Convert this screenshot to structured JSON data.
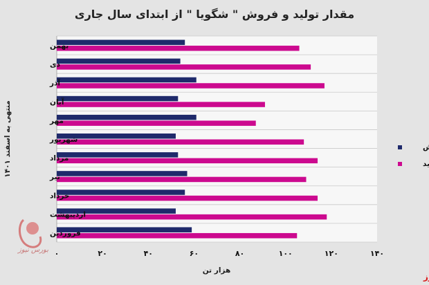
{
  "chart_data": {
    "type": "bar",
    "orientation": "horizontal",
    "title": "مقدار تولید و فروش \" شگویا \" از ابتدای سال جاری",
    "xlabel": "هزار تن",
    "ylabel": "منتهی به اسفند ۱۴۰۱",
    "categories": [
      "بهمن",
      "دی",
      "آذر",
      "آبان",
      "مهر",
      "شهریور",
      "مرداد",
      "تیر",
      "خرداد",
      "اردیبهشت",
      "فروردین"
    ],
    "series": [
      {
        "name": "فروش",
        "color": "#1f2a6b",
        "values": [
          56,
          54,
          61,
          53,
          61,
          52,
          53,
          57,
          56,
          52,
          59
        ]
      },
      {
        "name": "تولید",
        "color": "#cc0a8f",
        "values": [
          106,
          111,
          117,
          91,
          87,
          108,
          114,
          109,
          114,
          118,
          105
        ]
      }
    ],
    "xlim": [
      0,
      140
    ],
    "xticks": [
      0,
      20,
      40,
      60,
      80,
      100,
      120,
      140
    ],
    "xtick_labels": [
      "۰",
      "۲۰",
      "۴۰",
      "۶۰",
      "۸۰",
      "۱۰۰",
      "۱۲۰",
      "۱۴۰"
    ],
    "legend_position": "right",
    "grid": true
  },
  "source": "بورس نیوز",
  "watermark": "بورس نیوز"
}
